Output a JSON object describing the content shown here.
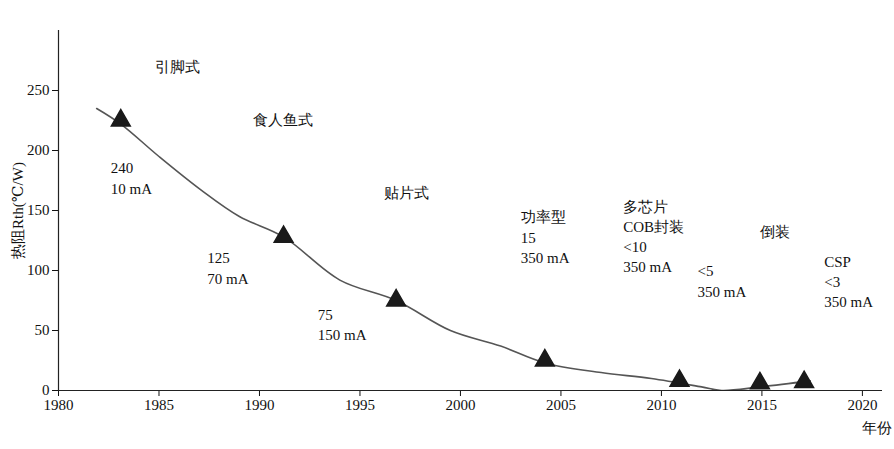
{
  "chart_data": {
    "type": "line",
    "x_label": "年份",
    "y_label": "热阻Rth(℃/W)",
    "xlim": [
      1980,
      2021
    ],
    "xticks": [
      1980,
      1985,
      1990,
      1995,
      2000,
      2005,
      2010,
      2015,
      2020
    ],
    "ylim": [
      0,
      300
    ],
    "yticks": [
      0,
      50,
      100,
      150,
      200,
      250
    ],
    "grid": false,
    "series": [
      {
        "type": "line",
        "color": "#555555",
        "x": [
          1981.9,
          1983.1,
          1985,
          1987.1,
          1989,
          1991.2,
          1994,
          1996.8,
          1999.5,
          2002,
          2004.2,
          2007,
          2009.5,
          2012,
          2013,
          2014.9,
          2017.4
        ],
        "values": [
          235,
          222,
          195,
          167,
          145,
          128,
          92,
          75,
          50,
          37,
          23,
          15,
          10,
          3,
          0,
          3,
          8
        ]
      },
      {
        "type": "scatter",
        "marker": "triangle",
        "color": "#1a1a1a",
        "x": [
          1983.1,
          1991.2,
          1996.8,
          2004.2,
          2010.9,
          2014.9,
          2017.1
        ],
        "values": [
          225,
          128,
          75,
          25,
          8,
          6,
          7
        ]
      }
    ],
    "annotations": [
      {
        "text": "引脚式",
        "x": 1984.8,
        "y": 277
      },
      {
        "text": "食人鱼式",
        "x": 1989.7,
        "y": 233
      },
      {
        "text": "240\n10 mA",
        "x": 1982.6,
        "y": 193
      },
      {
        "text": "125\n70 mA",
        "x": 1987.4,
        "y": 118
      },
      {
        "text": "贴片式",
        "x": 1996.2,
        "y": 172
      },
      {
        "text": "75\n150 mA",
        "x": 1992.9,
        "y": 71
      },
      {
        "text": "功率型\n15\n350 mA",
        "x": 2003.0,
        "y": 152
      },
      {
        "text": "多芯片\nCOB封装\n<10\n350 mA",
        "x": 2008.1,
        "y": 161
      },
      {
        "text": "倒装",
        "x": 2014.9,
        "y": 140
      },
      {
        "text": "<5\n350 mA",
        "x": 2011.8,
        "y": 107
      },
      {
        "text": "CSP\n<3\n350 mA",
        "x": 2018.1,
        "y": 115
      }
    ]
  }
}
